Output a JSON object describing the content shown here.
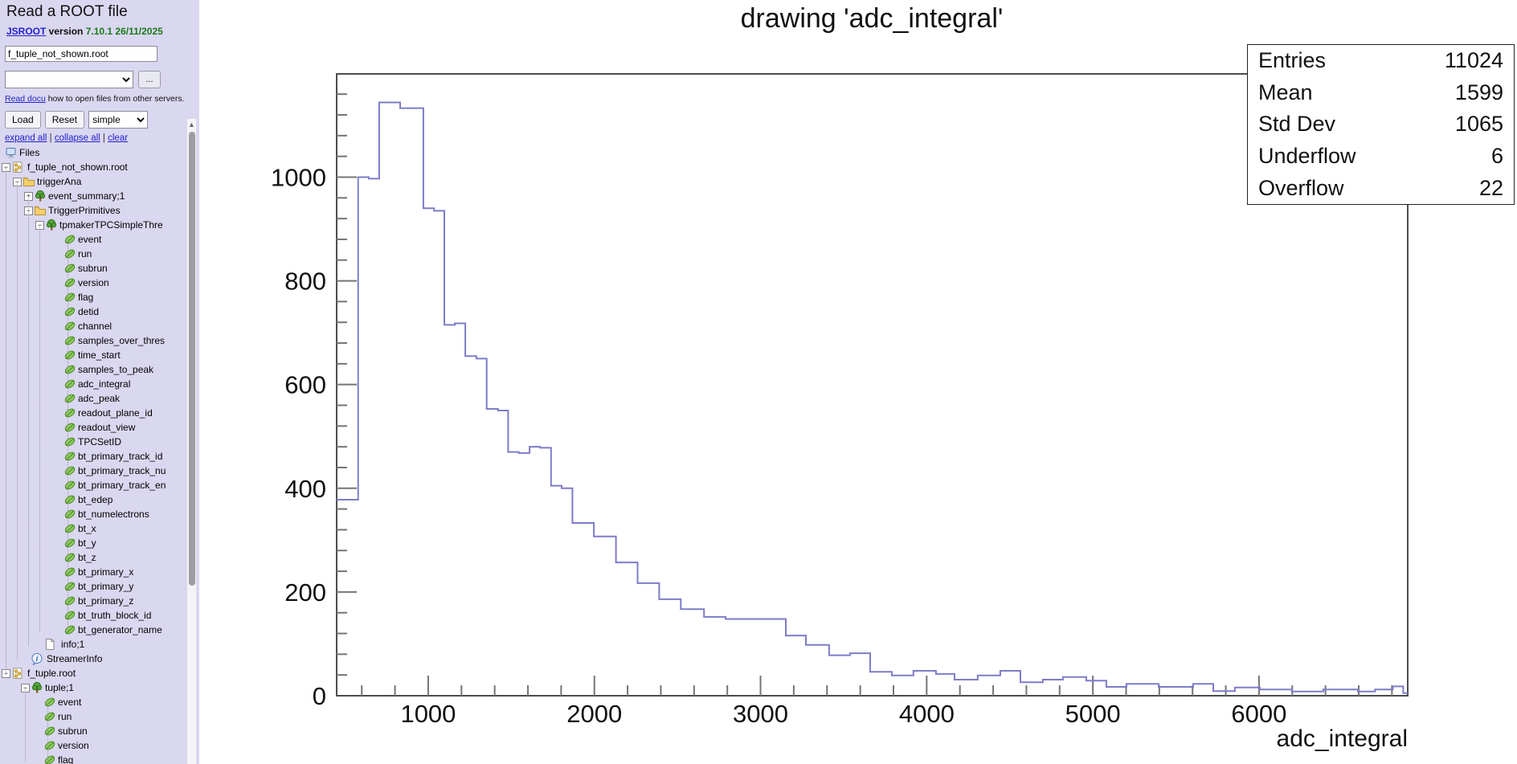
{
  "sidebar": {
    "title": "Read a ROOT file",
    "version_line": {
      "link": "JSROOT",
      "label": " version ",
      "value": "7.10.1 26/11/2025"
    },
    "file_input": {
      "value": "f_tuple_not_shown.root"
    },
    "url_select": {
      "value": ""
    },
    "browse_button": "...",
    "docu_line": {
      "link": "Read docu",
      "text": " how to open files from other servers."
    },
    "load_button": "Load",
    "reset_button": "Reset",
    "layout_select": {
      "value": "simple"
    },
    "links": [
      "expand all",
      "collapse all",
      "clear"
    ],
    "tree": {
      "items": [
        {
          "label": "Files",
          "icon": "computer",
          "iconX": 6,
          "textX": 24
        },
        {
          "label": "f_tuple_not_shown.root",
          "icon": "rootfile",
          "toggle": "-",
          "toggleX": 2,
          "iconX": 14,
          "textX": 34
        },
        {
          "label": "triggerAna",
          "icon": "folder",
          "toggle": "-",
          "toggleX": 16,
          "iconX": 28,
          "textX": 46
        },
        {
          "label": "event_summary;1",
          "icon": "tree",
          "toggle": "+",
          "toggleX": 30,
          "iconX": 42,
          "textX": 60
        },
        {
          "label": "TriggerPrimitives",
          "icon": "folder",
          "toggle": "-",
          "toggleX": 30,
          "iconX": 42,
          "textX": 60
        },
        {
          "label": "tpmakerTPCSimpleThre",
          "icon": "tree",
          "toggle": "-",
          "toggleX": 44,
          "iconX": 56,
          "textX": 74
        },
        {
          "label": "event",
          "icon": "leaf",
          "iconX": 79,
          "textX": 97
        },
        {
          "label": "run",
          "icon": "leaf",
          "iconX": 79,
          "textX": 97
        },
        {
          "label": "subrun",
          "icon": "leaf",
          "iconX": 79,
          "textX": 97
        },
        {
          "label": "version",
          "icon": "leaf",
          "iconX": 79,
          "textX": 97
        },
        {
          "label": "flag",
          "icon": "leaf",
          "iconX": 79,
          "textX": 97
        },
        {
          "label": "detid",
          "icon": "leaf",
          "iconX": 79,
          "textX": 97
        },
        {
          "label": "channel",
          "icon": "leaf",
          "iconX": 79,
          "textX": 97
        },
        {
          "label": "samples_over_thres",
          "icon": "leaf",
          "iconX": 79,
          "textX": 97
        },
        {
          "label": "time_start",
          "icon": "leaf",
          "iconX": 79,
          "textX": 97
        },
        {
          "label": "samples_to_peak",
          "icon": "leaf",
          "iconX": 79,
          "textX": 97
        },
        {
          "label": "adc_integral",
          "icon": "leaf",
          "iconX": 79,
          "textX": 97
        },
        {
          "label": "adc_peak",
          "icon": "leaf",
          "iconX": 79,
          "textX": 97
        },
        {
          "label": "readout_plane_id",
          "icon": "leaf",
          "iconX": 79,
          "textX": 97
        },
        {
          "label": "readout_view",
          "icon": "leaf",
          "iconX": 79,
          "textX": 97
        },
        {
          "label": "TPCSetID",
          "icon": "leaf",
          "iconX": 79,
          "textX": 97
        },
        {
          "label": "bt_primary_track_id",
          "icon": "leaf",
          "iconX": 79,
          "textX": 97
        },
        {
          "label": "bt_primary_track_nu",
          "icon": "leaf",
          "iconX": 79,
          "textX": 97
        },
        {
          "label": "bt_primary_track_en",
          "icon": "leaf",
          "iconX": 79,
          "textX": 97
        },
        {
          "label": "bt_edep",
          "icon": "leaf",
          "iconX": 79,
          "textX": 97
        },
        {
          "label": "bt_numelectrons",
          "icon": "leaf",
          "iconX": 79,
          "textX": 97
        },
        {
          "label": "bt_x",
          "icon": "leaf",
          "iconX": 79,
          "textX": 97
        },
        {
          "label": "bt_y",
          "icon": "leaf",
          "iconX": 79,
          "textX": 97
        },
        {
          "label": "bt_z",
          "icon": "leaf",
          "iconX": 79,
          "textX": 97
        },
        {
          "label": "bt_primary_x",
          "icon": "leaf",
          "iconX": 79,
          "textX": 97
        },
        {
          "label": "bt_primary_y",
          "icon": "leaf",
          "iconX": 79,
          "textX": 97
        },
        {
          "label": "bt_primary_z",
          "icon": "leaf",
          "iconX": 79,
          "textX": 97
        },
        {
          "label": "bt_truth_block_id",
          "icon": "leaf",
          "iconX": 79,
          "textX": 97
        },
        {
          "label": "bt_generator_name",
          "icon": "leaf",
          "iconX": 79,
          "textX": 97
        },
        {
          "label": "info;1",
          "icon": "page",
          "iconX": 54,
          "textX": 76
        },
        {
          "label": "StreamerInfo",
          "icon": "info",
          "iconX": 38,
          "textX": 58
        },
        {
          "label": "f_tuple.root",
          "icon": "rootfile",
          "toggle": "-",
          "toggleX": 2,
          "iconX": 14,
          "textX": 34
        },
        {
          "label": "tuple;1",
          "icon": "tree",
          "toggle": "-",
          "toggleX": 26,
          "iconX": 38,
          "textX": 56
        },
        {
          "label": "event",
          "icon": "leaf",
          "iconX": 54,
          "textX": 72
        },
        {
          "label": "run",
          "icon": "leaf",
          "iconX": 54,
          "textX": 72
        },
        {
          "label": "subrun",
          "icon": "leaf",
          "iconX": 54,
          "textX": 72
        },
        {
          "label": "version",
          "icon": "leaf",
          "iconX": 54,
          "textX": 72
        },
        {
          "label": "flag",
          "icon": "leaf",
          "iconX": 54,
          "textX": 72
        }
      ]
    }
  },
  "plot": {
    "title": "drawing 'adc_integral'",
    "xaxis_title": "adc_integral",
    "stats_rows": [
      {
        "label": "Entries",
        "value": "11024"
      },
      {
        "label": "Mean",
        "value": "1599"
      },
      {
        "label": "Std Dev",
        "value": "1065"
      },
      {
        "label": "Underflow",
        "value": "6"
      },
      {
        "label": "Overflow",
        "value": "22"
      }
    ]
  },
  "chart_data": {
    "type": "histogram-step",
    "title": "drawing 'adc_integral'",
    "xlabel": "adc_integral",
    "ylabel": "",
    "x_range": [
      449,
      6895
    ],
    "y_range": [
      0,
      1199
    ],
    "bin_width": 64.5,
    "n_bins": 100,
    "x_major_ticks": [
      1000,
      2000,
      3000,
      4000,
      5000,
      6000
    ],
    "x_minor_step": 200,
    "y_major_ticks": [
      0,
      200,
      400,
      600,
      800,
      1000
    ],
    "y_minor_step": 40,
    "grid": false,
    "line_color": "#7e7cc8",
    "frame_color": "#4d4d4d",
    "tick_color": "#757575",
    "stats": {
      "entries": 11024,
      "mean": 1599,
      "std_dev": 1065,
      "underflow": 6,
      "overflow": 22
    },
    "steps": [
      [
        449,
        378
      ],
      [
        578,
        1000
      ],
      [
        642,
        997
      ],
      [
        705,
        1144
      ],
      [
        831,
        1133
      ],
      [
        971,
        940
      ],
      [
        1035,
        935
      ],
      [
        1097,
        715
      ],
      [
        1160,
        718
      ],
      [
        1223,
        655
      ],
      [
        1290,
        650
      ],
      [
        1352,
        553
      ],
      [
        1420,
        550
      ],
      [
        1481,
        470
      ],
      [
        1545,
        468
      ],
      [
        1610,
        480
      ],
      [
        1674,
        478
      ],
      [
        1739,
        405
      ],
      [
        1803,
        400
      ],
      [
        1868,
        333
      ],
      [
        1997,
        307
      ],
      [
        2130,
        257
      ],
      [
        2260,
        217
      ],
      [
        2390,
        186
      ],
      [
        2520,
        167
      ],
      [
        2660,
        152
      ],
      [
        2790,
        148
      ],
      [
        3152,
        116
      ],
      [
        3273,
        98
      ],
      [
        3413,
        78
      ],
      [
        3539,
        82
      ],
      [
        3660,
        46
      ],
      [
        3790,
        39
      ],
      [
        3920,
        48
      ],
      [
        4056,
        42
      ],
      [
        4167,
        31
      ],
      [
        4307,
        39
      ],
      [
        4443,
        48
      ],
      [
        4564,
        26
      ],
      [
        4699,
        31
      ],
      [
        4820,
        36
      ],
      [
        4960,
        29
      ],
      [
        5081,
        17
      ],
      [
        5202,
        23
      ],
      [
        5396,
        17
      ],
      [
        5604,
        23
      ],
      [
        5725,
        9
      ],
      [
        5855,
        16
      ],
      [
        6005,
        12
      ],
      [
        6198,
        8
      ],
      [
        6387,
        12
      ],
      [
        6595,
        8
      ],
      [
        6698,
        12
      ],
      [
        6805,
        18
      ],
      [
        6868,
        5
      ]
    ]
  }
}
